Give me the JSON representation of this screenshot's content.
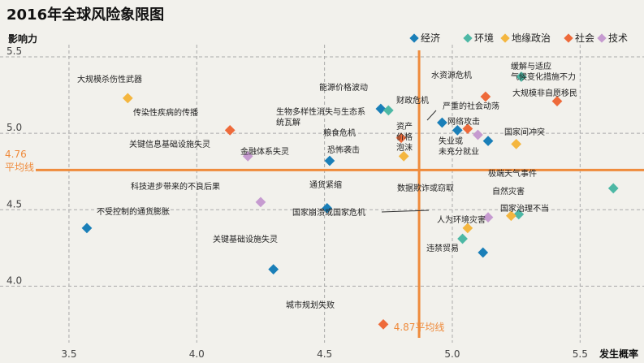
{
  "chart_data": {
    "type": "scatter",
    "title": "2016年全球风险象限图",
    "xlabel": "发生概率",
    "ylabel": "影响力",
    "xlim": [
      3.3,
      5.75
    ],
    "ylim": [
      3.63,
      5.58
    ],
    "xticks": [
      "3.5",
      "4.0",
      "4.5",
      "5.0",
      "5.5"
    ],
    "yticks": [
      "5.5",
      "5.0",
      "4.5",
      "4.0"
    ],
    "reference_lines": {
      "x": {
        "value": 4.87,
        "label": "4.87平均线"
      },
      "y": {
        "value": 4.76,
        "label_value": "4.76",
        "label_text": "平均线"
      }
    },
    "categories": [
      {
        "key": "economic",
        "name": "经济",
        "color": "#1a7fb8"
      },
      {
        "key": "environmental",
        "name": "环境",
        "color": "#4db8a5"
      },
      {
        "key": "geopolitical",
        "name": "地缘政治",
        "color": "#f4b63f"
      },
      {
        "key": "societal",
        "name": "社会",
        "color": "#ee6a3a"
      },
      {
        "key": "technological",
        "name": "技术",
        "color": "#c69bd0"
      }
    ],
    "points": [
      {
        "label": "大规模杀伤性武器",
        "x": 3.73,
        "y": 5.23,
        "category": "geopolitical"
      },
      {
        "label": "传染性疾病的传播",
        "x": 4.13,
        "y": 5.02,
        "category": "societal"
      },
      {
        "label": "关键信息基础设施失灵",
        "x": 4.2,
        "y": 4.85,
        "category": "technological"
      },
      {
        "label": "科技进步带来的不良后果",
        "x": 4.25,
        "y": 4.55,
        "category": "technological"
      },
      {
        "label": "不受控制的通货膨胀",
        "x": 3.57,
        "y": 4.38,
        "category": "economic"
      },
      {
        "label": "关键基础设施失灵",
        "x": 4.3,
        "y": 4.11,
        "category": "economic"
      },
      {
        "label": "能源价格波动",
        "x": 4.72,
        "y": 5.16,
        "category": "economic"
      },
      {
        "label": "生物多样性消失与生态系统瓦解",
        "x": 4.75,
        "y": 5.15,
        "category": "environmental"
      },
      {
        "label": "粮食危机",
        "x": 4.8,
        "y": 4.97,
        "category": "societal"
      },
      {
        "label": "恐怖袭击",
        "x": 4.81,
        "y": 4.85,
        "category": "geopolitical"
      },
      {
        "label": "金融体系失灵",
        "x": 4.52,
        "y": 4.82,
        "category": "economic"
      },
      {
        "label": "通货紧缩",
        "x": 4.51,
        "y": 4.51,
        "category": "economic"
      },
      {
        "label": "城市规划失败",
        "x": 4.73,
        "y": 3.75,
        "category": "societal"
      },
      {
        "label": "水资源危机",
        "x": 5.13,
        "y": 5.24,
        "category": "societal"
      },
      {
        "label": "缓解与适应气候变化措施不力",
        "x": 5.27,
        "y": 5.37,
        "category": "environmental"
      },
      {
        "label": "大规模非自愿移民",
        "x": 5.41,
        "y": 5.21,
        "category": "societal"
      },
      {
        "label": "财政危机",
        "x": 4.96,
        "y": 5.07,
        "category": "economic"
      },
      {
        "label": "严重的社会动荡",
        "x": 5.06,
        "y": 5.03,
        "category": "societal"
      },
      {
        "label": "资产价格泡沫",
        "x": 5.02,
        "y": 5.02,
        "category": "economic"
      },
      {
        "label": "网络攻击",
        "x": 5.1,
        "y": 4.99,
        "category": "technological"
      },
      {
        "label": "失业或未充分就业",
        "x": 5.14,
        "y": 4.95,
        "category": "economic"
      },
      {
        "label": "国家间冲突",
        "x": 5.25,
        "y": 4.93,
        "category": "geopolitical"
      },
      {
        "label": "极端天气事件",
        "x": 5.63,
        "y": 4.64,
        "category": "environmental"
      },
      {
        "label": "数据欺诈或窃取",
        "x": 5.14,
        "y": 4.45,
        "category": "technological"
      },
      {
        "label": "自然灾害",
        "x": 5.26,
        "y": 4.47,
        "category": "environmental"
      },
      {
        "label": "国家治理不当",
        "x": 5.23,
        "y": 4.46,
        "category": "geopolitical"
      },
      {
        "label": "国家崩溃或国家危机",
        "x": 5.06,
        "y": 4.38,
        "category": "geopolitical"
      },
      {
        "label": "人为环境灾害",
        "x": 5.04,
        "y": 4.31,
        "category": "environmental"
      },
      {
        "label": "违禁贸易",
        "x": 5.12,
        "y": 4.22,
        "category": "economic"
      }
    ]
  }
}
